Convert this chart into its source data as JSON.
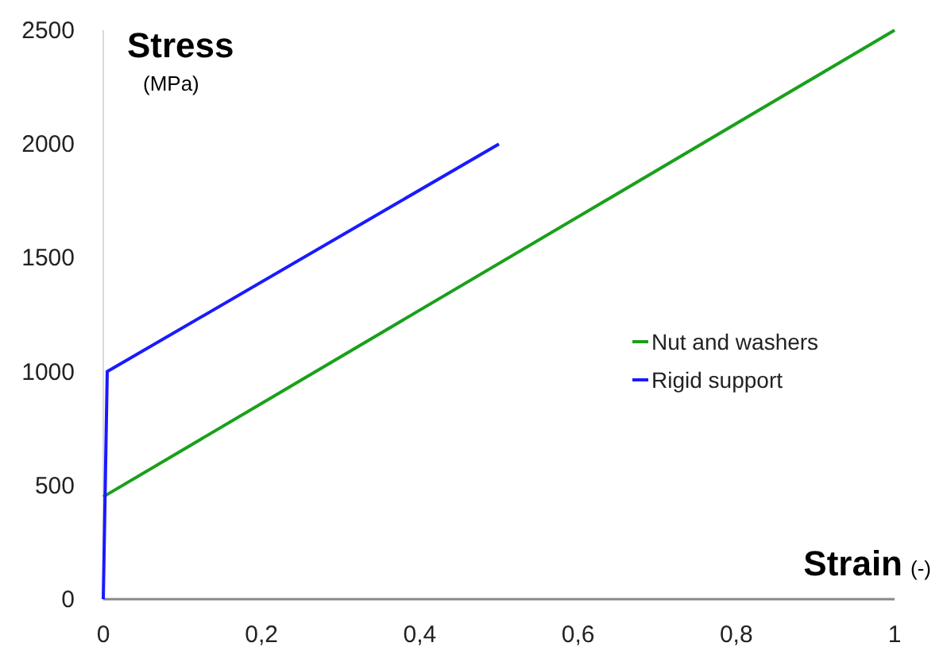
{
  "chart_data": {
    "type": "line",
    "xlabel": "Strain (-)",
    "ylabel": "Stress (MPa)",
    "xlim": [
      0,
      1
    ],
    "ylim": [
      0,
      2500
    ],
    "xticks": [
      0,
      {
        "value": 0.2,
        "label": "0,2"
      },
      {
        "value": 0.4,
        "label": "0,4"
      },
      {
        "value": 0.6,
        "label": "0,6"
      },
      {
        "value": 0.8,
        "label": "0,8"
      },
      1
    ],
    "yticks": [
      0,
      500,
      1000,
      1500,
      2000,
      2500
    ],
    "legend": "right",
    "grid": false,
    "marker": "none",
    "line_style": "solid",
    "series": [
      {
        "name": "Nut and washers",
        "color": "#1aa01a",
        "x": [
          0,
          1
        ],
        "values": [
          450,
          2500
        ]
      },
      {
        "name": "Rigid support",
        "color": "#1a1aff",
        "x": [
          0,
          0.005,
          0.5
        ],
        "values": [
          0,
          1000,
          2000
        ]
      }
    ]
  }
}
